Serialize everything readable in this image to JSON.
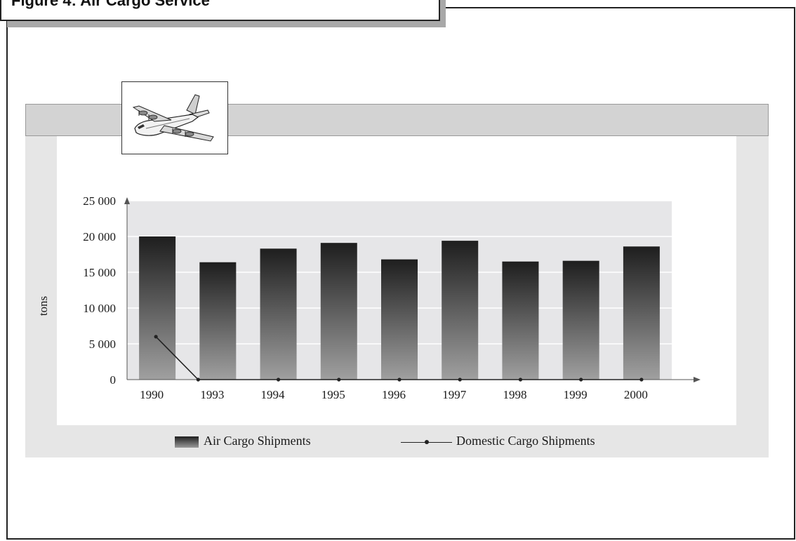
{
  "title": "Figure 4: Air Cargo Service",
  "colors": {
    "bar_top": "#1e1e1e",
    "bar_bottom": "#a0a0a0",
    "plot_bg": "#e6e6e8",
    "line": "#222222"
  },
  "icons": {
    "figure_icon": "cargo-airplane-icon"
  },
  "legend": {
    "air": "Air Cargo Shipments",
    "domestic": "Domestic Cargo Shipments"
  },
  "chart_data": {
    "type": "bar",
    "title": "Figure 4: Air Cargo Service",
    "ylabel": "tons",
    "xlabel": "",
    "ylim": [
      0,
      25000
    ],
    "yticks": [
      "25 000",
      "20 000",
      "15 000",
      "10 000",
      "5 000",
      "0"
    ],
    "ytick_values": [
      25000,
      20000,
      15000,
      10000,
      5000,
      0
    ],
    "categories": [
      "1990",
      "1993",
      "1994",
      "1995",
      "1996",
      "1997",
      "1998",
      "1999",
      "2000"
    ],
    "grid": true,
    "legend_position": "bottom",
    "series": [
      {
        "name": "Air Cargo Shipments",
        "type": "bar",
        "values": [
          20000,
          16400,
          18300,
          19100,
          16800,
          19400,
          16500,
          16600,
          18600
        ]
      },
      {
        "name": "Domestic Cargo Shipments",
        "type": "line",
        "values": [
          6000,
          0,
          0,
          0,
          0,
          0,
          0,
          0,
          0
        ]
      }
    ]
  }
}
